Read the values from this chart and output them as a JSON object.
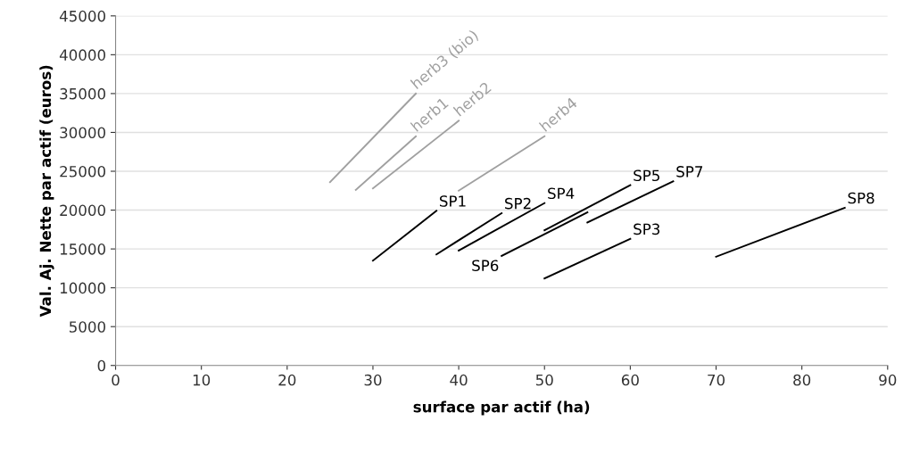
{
  "chart_data": {
    "type": "line",
    "xlabel": "surface par actif (ha)",
    "ylabel": "Val. Aj. Nette par actif (euros)",
    "xlim": [
      0,
      90
    ],
    "xticks": [
      0,
      10,
      20,
      30,
      40,
      50,
      60,
      70,
      80,
      90
    ],
    "ylim": [
      0,
      45000
    ],
    "yticks": [
      0,
      5000,
      10000,
      15000,
      20000,
      25000,
      30000,
      35000,
      40000,
      45000
    ],
    "grid": "y",
    "marker": "none",
    "line_style": "solid",
    "series": [
      {
        "color": "#a0a0a0",
        "x": [
          25,
          35
        ],
        "values": [
          23600,
          35000
        ]
      },
      {
        "color": "#a0a0a0",
        "x": [
          28,
          35
        ],
        "values": [
          22600,
          29500
        ]
      },
      {
        "color": "#a0a0a0",
        "x": [
          30,
          40
        ],
        "values": [
          22800,
          31500
        ]
      },
      {
        "color": "#a0a0a0",
        "x": [
          40,
          50
        ],
        "values": [
          22500,
          29500
        ]
      },
      {
        "color": "#000000",
        "x": [
          30,
          37.4
        ],
        "values": [
          13500,
          19900
        ]
      },
      {
        "color": "#000000",
        "x": [
          37.4,
          45
        ],
        "values": [
          14300,
          19600
        ]
      },
      {
        "color": "#000000",
        "x": [
          40,
          50
        ],
        "values": [
          14800,
          20900
        ]
      },
      {
        "color": "#000000",
        "x": [
          50,
          60
        ],
        "values": [
          17400,
          23200
        ]
      },
      {
        "color": "#000000",
        "x": [
          45,
          55
        ],
        "values": [
          14100,
          19700
        ]
      },
      {
        "color": "#000000",
        "x": [
          55,
          65
        ],
        "values": [
          18400,
          23700
        ]
      },
      {
        "color": "#000000",
        "x": [
          50,
          60
        ],
        "values": [
          11200,
          16300
        ]
      },
      {
        "color": "#000000",
        "x": [
          70,
          85
        ],
        "values": [
          14000,
          20300
        ]
      }
    ],
    "annotations": [
      {
        "text": "herb3 (bio)",
        "x": 35,
        "y": 35000
      },
      {
        "text": "herb1",
        "x": 35,
        "y": 29500
      },
      {
        "text": "herb2",
        "x": 40,
        "y": 31500
      },
      {
        "text": "herb4",
        "x": 50,
        "y": 29500
      },
      {
        "text": "SP1",
        "x": 37.4,
        "y": 19900
      },
      {
        "text": "SP2",
        "x": 45,
        "y": 19600
      },
      {
        "text": "SP4",
        "x": 50,
        "y": 20900
      },
      {
        "text": "SP5",
        "x": 60,
        "y": 23200
      },
      {
        "text": "SP6",
        "x": 45,
        "y": 14100
      },
      {
        "text": "SP7",
        "x": 65,
        "y": 23700
      },
      {
        "text": "SP3",
        "x": 60,
        "y": 16300
      },
      {
        "text": "SP8",
        "x": 85,
        "y": 20300
      }
    ]
  }
}
